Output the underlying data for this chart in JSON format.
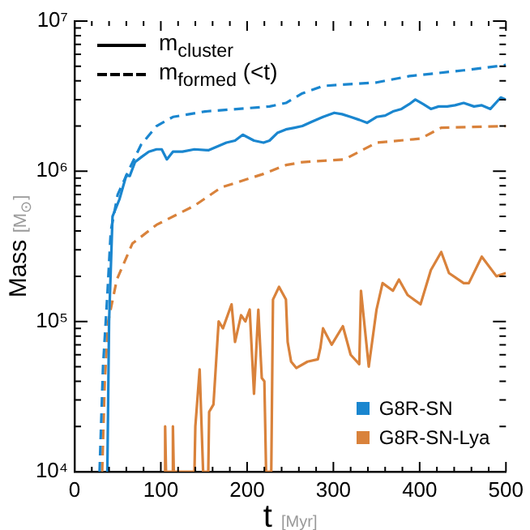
{
  "chart_data": {
    "type": "line",
    "xlabel": "t [Myr]",
    "ylabel": "Mass [M$_{⊙}$]",
    "log": "y",
    "legend": "bottom right",
    "marker": "none",
    "annotations": [
      "m$_{cluster}$",
      "m$_{formed}$ (<t)"
    ],
    "xlim": [
      0,
      500
    ],
    "ylim": [
      10000,
      10000000
    ],
    "xticks": [
      0,
      {
        "value": 20,
        "label": null
      },
      {
        "value": 40,
        "label": null
      },
      {
        "value": 60,
        "label": null
      },
      {
        "value": 80,
        "label": null
      },
      100,
      {
        "value": 120,
        "label": null
      },
      {
        "value": 140,
        "label": null
      },
      {
        "value": 160,
        "label": null
      },
      {
        "value": 180,
        "label": null
      },
      200,
      {
        "value": 220,
        "label": null
      },
      {
        "value": 240,
        "label": null
      },
      {
        "value": 260,
        "label": null
      },
      {
        "value": 280,
        "label": null
      },
      300,
      {
        "value": 320,
        "label": null
      },
      {
        "value": 340,
        "label": null
      },
      {
        "value": 360,
        "label": null
      },
      {
        "value": 380,
        "label": null
      },
      400,
      {
        "value": 420,
        "label": null
      },
      {
        "value": 440,
        "label": null
      },
      {
        "value": 460,
        "label": null
      },
      {
        "value": 480,
        "label": null
      },
      500
    ],
    "yticks": [
      {
        "value": 10000,
        "label": "10⁴"
      },
      {
        "value": 20000,
        "label": null
      },
      {
        "value": 30000,
        "label": null
      },
      {
        "value": 40000,
        "label": null
      },
      {
        "value": 50000,
        "label": null
      },
      {
        "value": 60000,
        "label": null
      },
      {
        "value": 70000,
        "label": null
      },
      {
        "value": 80000,
        "label": null
      },
      {
        "value": 90000,
        "label": null
      },
      {
        "value": 100000,
        "label": "10⁵"
      },
      {
        "value": 200000,
        "label": null
      },
      {
        "value": 300000,
        "label": null
      },
      {
        "value": 400000,
        "label": null
      },
      {
        "value": 500000,
        "label": null
      },
      {
        "value": 600000,
        "label": null
      },
      {
        "value": 700000,
        "label": null
      },
      {
        "value": 800000,
        "label": null
      },
      {
        "value": 900000,
        "label": null
      },
      {
        "value": 1000000,
        "label": "10⁶"
      },
      {
        "value": 2000000,
        "label": null
      },
      {
        "value": 3000000,
        "label": null
      },
      {
        "value": 4000000,
        "label": null
      },
      {
        "value": 5000000,
        "label": null
      },
      {
        "value": 6000000,
        "label": null
      },
      {
        "value": 7000000,
        "label": null
      },
      {
        "value": 8000000,
        "label": null
      },
      {
        "value": 9000000,
        "label": null
      },
      {
        "value": 10000000,
        "label": "10⁷"
      }
    ],
    "series": [
      {
        "name": "G8R-SN",
        "color": "#1a86cf",
        "line_style": "solid",
        "x": [
          38,
          40,
          44,
          52,
          60,
          64,
          70,
          78,
          86,
          95,
          101,
          107,
          114,
          125,
          139,
          155,
          176,
          186,
          195,
          208,
          219,
          226,
          235,
          245,
          255,
          264,
          276,
          288,
          301,
          310,
          320,
          330,
          339,
          350,
          360,
          369,
          379,
          388,
          395,
          404,
          413,
          422,
          432,
          441,
          451,
          463,
          472,
          482,
          494,
          500
        ],
        "values": [
          10000,
          100000,
          500000,
          650000,
          940000,
          930000,
          1150000,
          1250000,
          1350000,
          1400000,
          1400000,
          1200000,
          1350000,
          1350000,
          1400000,
          1380000,
          1550000,
          1600000,
          1750000,
          1600000,
          1550000,
          1600000,
          1800000,
          1900000,
          1950000,
          2000000,
          2150000,
          2300000,
          2450000,
          2400000,
          2300000,
          2200000,
          2100000,
          2300000,
          2350000,
          2500000,
          2600000,
          2800000,
          3000000,
          2800000,
          2600000,
          2700000,
          2700000,
          2750000,
          2850000,
          2700000,
          2750000,
          2600000,
          3100000,
          3000000
        ]
      },
      {
        "color": "#1a86cf",
        "line_style": "dashed",
        "x": [
          29,
          33,
          38,
          42,
          50,
          64,
          77,
          95,
          114,
          151,
          226,
          245,
          264,
          288,
          350,
          388,
          451,
          500
        ],
        "values": [
          10000,
          50000,
          150000,
          400000,
          700000,
          1050000,
          1500000,
          2000000,
          2300000,
          2500000,
          2700000,
          2850000,
          3300000,
          3700000,
          3900000,
          4300000,
          4700000,
          5100000
        ]
      },
      {
        "name": "G8R-SN-Lya",
        "color": "#d9823b",
        "line_style": "solid",
        "x": [
          104,
          105,
          106,
          113,
          114,
          115,
          139,
          140,
          145,
          149,
          155,
          156,
          161,
          167,
          172,
          182,
          186,
          193,
          198,
          203,
          208,
          213,
          217,
          220,
          222,
          228,
          230,
          237,
          245,
          247,
          251,
          257,
          270,
          282,
          285,
          288,
          298,
          311,
          320,
          330,
          332,
          341,
          350,
          357,
          369,
          376,
          386,
          401,
          413,
          425,
          434,
          451,
          457,
          472,
          489,
          500
        ],
        "values": [
          10000,
          20000,
          10000,
          10000,
          20000,
          10000,
          10000,
          20000,
          48000,
          10000,
          10000,
          25000,
          28000,
          100000,
          90000,
          130000,
          73000,
          110000,
          100000,
          120000,
          33000,
          120000,
          42000,
          40000,
          10000,
          10000,
          140000,
          170000,
          140000,
          73000,
          54000,
          49000,
          54000,
          56000,
          67000,
          90000,
          70000,
          93000,
          60000,
          52000,
          160000,
          50000,
          120000,
          180000,
          160000,
          190000,
          150000,
          130000,
          220000,
          290000,
          210000,
          180000,
          180000,
          270000,
          200000,
          210000
        ]
      },
      {
        "color": "#d9823b",
        "line_style": "dashed",
        "x": [
          32,
          35,
          39,
          49,
          67,
          95,
          139,
          170,
          219,
          245,
          264,
          313,
          350,
          401,
          425,
          500
        ],
        "values": [
          10000,
          40000,
          100000,
          190000,
          330000,
          440000,
          590000,
          780000,
          960000,
          1100000,
          1150000,
          1200000,
          1550000,
          1650000,
          1950000,
          2000000
        ]
      }
    ]
  }
}
